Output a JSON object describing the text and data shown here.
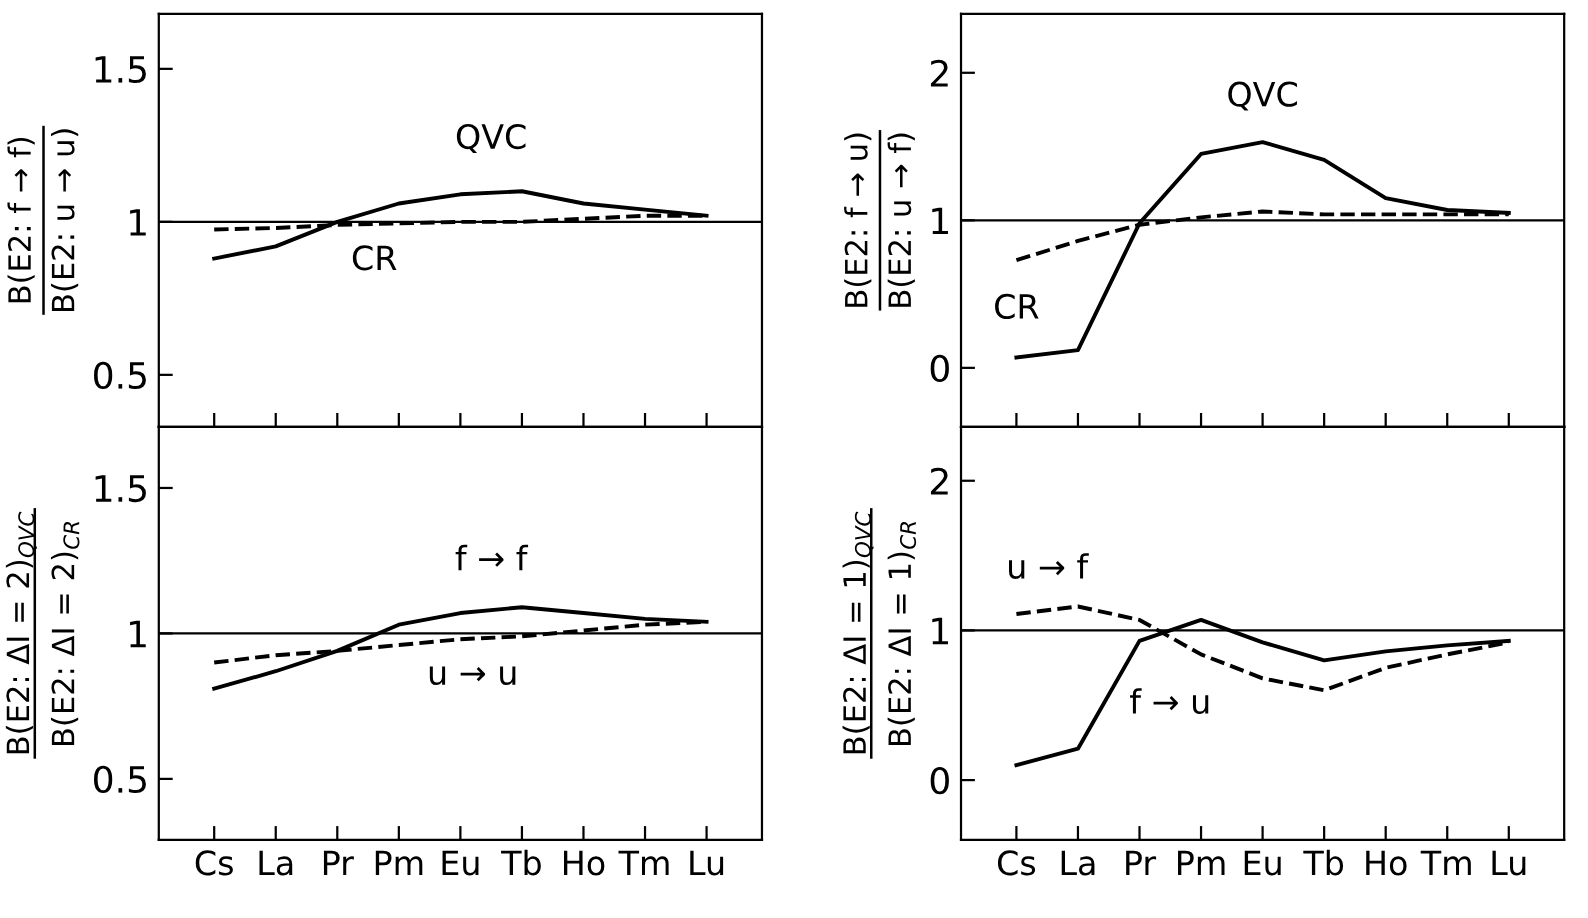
{
  "chart_data": [
    {
      "type": "line",
      "ylabel": "B(E2: f → f)\nB(E2: u → u)",
      "categories": [
        null,
        null,
        null,
        null,
        null,
        null,
        null,
        null,
        null
      ],
      "tick_labels": "y",
      "ylim": [
        0.33,
        1.68
      ],
      "yticks": [
        0.5,
        1,
        1.5
      ],
      "grid": false,
      "legend": false,
      "marker": "none",
      "ref_lines": [
        {
          "axis": "y",
          "value": 1,
          "color": "#000000",
          "line_style": "solid"
        }
      ],
      "series": [
        {
          "name": "QVC",
          "color": "#000000",
          "line_style": "solid",
          "values": [
            0.88,
            0.92,
            1.0,
            1.06,
            1.09,
            1.1,
            1.06,
            1.04,
            1.02
          ]
        },
        {
          "name": "CR",
          "color": "#000000",
          "line_style": "dashed",
          "values": [
            0.975,
            0.98,
            0.99,
            0.995,
            1.0,
            1.0,
            1.01,
            1.02,
            1.02
          ]
        }
      ]
    },
    {
      "type": "line",
      "ylabel": "B(E2: f → u)\nB(E2: u → f)",
      "categories": [
        null,
        null,
        null,
        null,
        null,
        null,
        null,
        null,
        null
      ],
      "tick_labels": "y",
      "ylim": [
        -0.4,
        2.4
      ],
      "yticks": [
        0,
        1,
        2
      ],
      "grid": false,
      "legend": false,
      "marker": "none",
      "ref_lines": [
        {
          "axis": "y",
          "value": 1,
          "color": "#000000",
          "line_style": "solid"
        }
      ],
      "series": [
        {
          "name": "QVC",
          "color": "#000000",
          "line_style": "solid",
          "values": [
            0.07,
            0.12,
            0.98,
            1.45,
            1.53,
            1.41,
            1.15,
            1.07,
            1.05
          ]
        },
        {
          "name": "CR",
          "color": "#000000",
          "line_style": "dashed",
          "values": [
            0.73,
            0.86,
            0.97,
            1.02,
            1.06,
            1.04,
            1.04,
            1.04,
            1.04
          ]
        }
      ]
    },
    {
      "type": "line",
      "ylabel": "B(E2: ΔI = 2)$_{QVC}$\nB(E2: ΔI = 2)$_{CR}$",
      "categories": [
        "Cs",
        "La",
        "Pr",
        "Pm",
        "Eu",
        "Tb",
        "Ho",
        "Tm",
        "Lu"
      ],
      "ylim": [
        0.29,
        1.71
      ],
      "yticks": [
        0.5,
        1,
        1.5
      ],
      "grid": false,
      "legend": false,
      "marker": "none",
      "ref_lines": [
        {
          "axis": "y",
          "value": 1,
          "color": "#000000",
          "line_style": "solid"
        }
      ],
      "series": [
        {
          "name": "f → f",
          "color": "#000000",
          "line_style": "solid",
          "values": [
            0.81,
            0.87,
            0.94,
            1.03,
            1.07,
            1.09,
            1.07,
            1.05,
            1.04
          ]
        },
        {
          "name": "u → u",
          "color": "#000000",
          "line_style": "dashed",
          "values": [
            0.9,
            0.925,
            0.94,
            0.96,
            0.98,
            0.99,
            1.01,
            1.03,
            1.04
          ]
        }
      ]
    },
    {
      "type": "line",
      "ylabel": "B(E2: ΔI = 1)$_{QVC}$\nB(E2: ΔI = 1)$_{CR}$",
      "categories": [
        "Cs",
        "La",
        "Pr",
        "Pm",
        "Eu",
        "Tb",
        "Ho",
        "Tm",
        "Lu"
      ],
      "ylim": [
        -0.4,
        2.36
      ],
      "yticks": [
        0,
        1,
        2
      ],
      "grid": false,
      "legend": false,
      "marker": "none",
      "ref_lines": [
        {
          "axis": "y",
          "value": 1,
          "color": "#000000",
          "line_style": "solid"
        }
      ],
      "series": [
        {
          "name": "f → u",
          "color": "#000000",
          "line_style": "solid",
          "values": [
            0.1,
            0.21,
            0.93,
            1.07,
            0.92,
            0.8,
            0.86,
            0.9,
            0.93
          ]
        },
        {
          "name": "u → f",
          "color": "#000000",
          "line_style": "dashed",
          "values": [
            1.11,
            1.16,
            1.07,
            0.84,
            0.68,
            0.6,
            0.75,
            0.84,
            0.92
          ]
        }
      ]
    }
  ]
}
